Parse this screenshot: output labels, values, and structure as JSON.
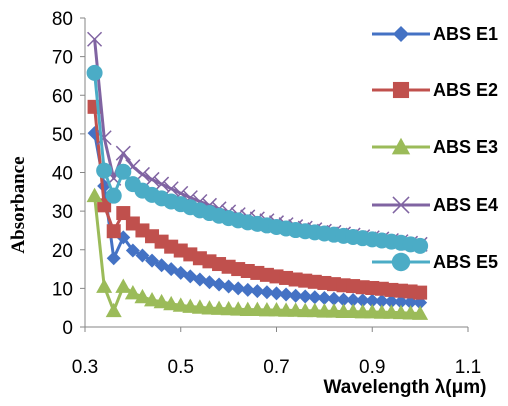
{
  "chart_data": {
    "type": "line",
    "title": "",
    "xlabel": "Wavelength  λ(μm)",
    "ylabel": "Absorbance",
    "xlim": [
      0.3,
      1.1
    ],
    "ylim": [
      0,
      80
    ],
    "xticks": [
      "0.3",
      "0.5",
      "0.7",
      "0.9",
      "1.1"
    ],
    "yticks": [
      "0",
      "10",
      "20",
      "30",
      "40",
      "50",
      "60",
      "70",
      "80"
    ],
    "grid": false,
    "legend_position": "right",
    "x": [
      0.32,
      0.34,
      0.36,
      0.38,
      0.4,
      0.42,
      0.44,
      0.46,
      0.48,
      0.5,
      0.52,
      0.54,
      0.56,
      0.58,
      0.6,
      0.62,
      0.64,
      0.66,
      0.68,
      0.7,
      0.72,
      0.74,
      0.76,
      0.78,
      0.8,
      0.82,
      0.84,
      0.86,
      0.88,
      0.9,
      0.92,
      0.94,
      0.96,
      0.98,
      1.0
    ],
    "series": [
      {
        "name": "ABS  E1",
        "color": "#4472C4",
        "marker": "diamond",
        "values": [
          50.2,
          36.5,
          17.8,
          23.2,
          19.8,
          18.5,
          17.2,
          16.0,
          15.0,
          14.0,
          13.1,
          12.3,
          11.6,
          11.0,
          10.5,
          10.0,
          9.6,
          9.3,
          9.0,
          8.7,
          8.4,
          8.1,
          7.9,
          7.7,
          7.5,
          7.3,
          7.1,
          7.0,
          6.9,
          6.8,
          6.7,
          6.6,
          6.5,
          6.4,
          6.3
        ]
      },
      {
        "name": "ABS  E2",
        "color": "#C0504D",
        "marker": "square",
        "values": [
          57.0,
          31.5,
          24.8,
          29.5,
          26.8,
          25.0,
          23.5,
          22.1,
          20.8,
          19.8,
          18.8,
          17.8,
          17.0,
          16.3,
          15.6,
          15.0,
          14.5,
          14.0,
          13.5,
          13.1,
          12.7,
          12.3,
          12.0,
          11.7,
          11.4,
          11.1,
          10.8,
          10.6,
          10.3,
          10.1,
          9.9,
          9.6,
          9.4,
          9.2,
          8.9
        ]
      },
      {
        "name": "ABS  E3",
        "color": "#9BBB59",
        "marker": "triangle",
        "values": [
          34.0,
          10.5,
          4.2,
          10.5,
          8.8,
          7.8,
          7.0,
          6.5,
          6.0,
          5.6,
          5.3,
          5.1,
          4.9,
          4.8,
          4.7,
          4.6,
          4.5,
          4.5,
          4.4,
          4.4,
          4.3,
          4.3,
          4.2,
          4.2,
          4.1,
          4.1,
          4.0,
          4.0,
          3.9,
          3.9,
          3.8,
          3.8,
          3.7,
          3.6,
          3.5
        ]
      },
      {
        "name": "ABS  E4",
        "color": "#8064A2",
        "marker": "x",
        "values": [
          74.5,
          49.0,
          38.5,
          45.0,
          41.5,
          39.5,
          38.2,
          37.0,
          35.8,
          34.6,
          33.5,
          32.5,
          31.5,
          30.6,
          29.8,
          29.1,
          28.5,
          28.0,
          27.5,
          27.0,
          26.5,
          26.0,
          25.6,
          25.2,
          24.8,
          24.5,
          24.1,
          23.8,
          23.4,
          23.1,
          22.8,
          22.4,
          22.1,
          21.7,
          21.4
        ]
      },
      {
        "name": "ABS  E5",
        "color": "#4BACC6",
        "marker": "circle",
        "values": [
          65.8,
          40.5,
          34.0,
          40.2,
          37.0,
          35.3,
          34.2,
          33.3,
          32.5,
          31.8,
          31.0,
          30.2,
          29.5,
          28.8,
          28.2,
          27.6,
          27.1,
          26.7,
          26.3,
          25.9,
          25.5,
          25.1,
          24.8,
          24.5,
          24.2,
          23.9,
          23.6,
          23.3,
          23.0,
          22.7,
          22.4,
          22.1,
          21.8,
          21.4,
          21.0
        ]
      }
    ]
  }
}
